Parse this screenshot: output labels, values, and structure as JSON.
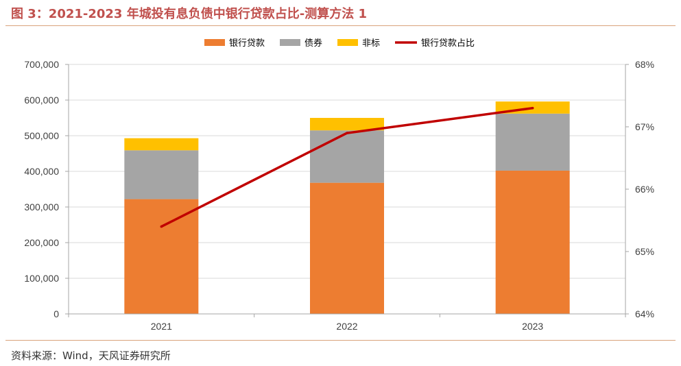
{
  "title": "图 3：2021-2023 年城投有息负债中银行贷款占比-测算方法 1",
  "source": "资料来源：Wind，天风证券研究所",
  "chart_data": {
    "type": "bar",
    "stacked": true,
    "categories": [
      "2021",
      "2022",
      "2023"
    ],
    "series": [
      {
        "name": "银行贷款",
        "type": "bar",
        "axis": "left",
        "color": "#ED7D31",
        "values": [
          322000,
          368000,
          402000
        ]
      },
      {
        "name": "债券",
        "type": "bar",
        "axis": "left",
        "color": "#A5A5A5",
        "values": [
          137000,
          147000,
          160000
        ]
      },
      {
        "name": "非标",
        "type": "bar",
        "axis": "left",
        "color": "#FFC000",
        "values": [
          34000,
          35000,
          34000
        ]
      },
      {
        "name": "银行贷款占比",
        "type": "line",
        "axis": "right",
        "color": "#C00000",
        "values": [
          65.4,
          66.9,
          67.3
        ]
      }
    ],
    "y_left": {
      "min": 0,
      "max": 700000,
      "step": 100000,
      "tick_labels": [
        "0",
        "100,000",
        "200,000",
        "300,000",
        "400,000",
        "500,000",
        "600,000",
        "700,000"
      ]
    },
    "y_right": {
      "min": 64,
      "max": 68,
      "step": 1,
      "unit": "%",
      "tick_labels": [
        "64%",
        "65%",
        "66%",
        "67%",
        "68%"
      ]
    },
    "grid": true,
    "legend_position": "top"
  }
}
